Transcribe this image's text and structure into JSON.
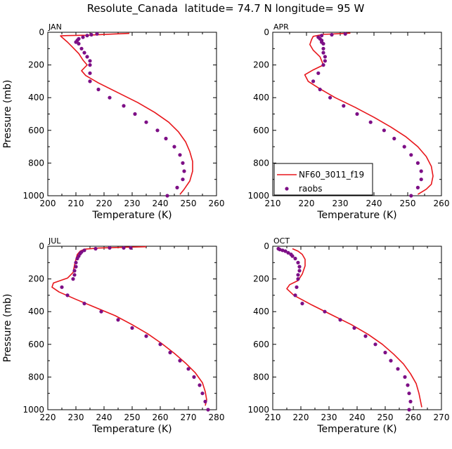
{
  "figure": {
    "title": "Resolute_Canada  latitude= 74.7 N longitude= 95 W"
  },
  "legend": {
    "model_label": "NF60_3011_f19",
    "obs_label": "raobs",
    "placement": "inside APR panel, lower-left"
  },
  "colors": {
    "model": "#e8161b",
    "obs": "#7d0f86",
    "axes": "#000000"
  },
  "chart_data": [
    {
      "type": "line",
      "panel": "JAN",
      "xlabel": "Temperature (K)",
      "ylabel": "Pressure (mb)",
      "xlim": [
        200,
        260
      ],
      "xticks": [
        "200",
        "210",
        "220",
        "230",
        "240",
        "250",
        "260"
      ],
      "ylim": [
        1000,
        0
      ],
      "yticks": [
        "0",
        "200",
        "400",
        "600",
        "800",
        "1000"
      ],
      "series": [
        {
          "name": "NF60_3011_f19",
          "kind": "line",
          "points": [
            [
              229,
              7
            ],
            [
              223,
              11
            ],
            [
              214,
              18
            ],
            [
              207,
              20
            ],
            [
              204.5,
              22
            ],
            [
              205,
              30
            ],
            [
              207,
              60
            ],
            [
              209,
              95
            ],
            [
              211,
              130
            ],
            [
              212.5,
              170
            ],
            [
              214,
              200
            ],
            [
              212,
              235
            ],
            [
              213.5,
              265
            ],
            [
              218,
              310
            ],
            [
              225,
              370
            ],
            [
              232,
              430
            ],
            [
              238,
              490
            ],
            [
              243,
              550
            ],
            [
              246.5,
              610
            ],
            [
              249,
              670
            ],
            [
              250.5,
              730
            ],
            [
              251.5,
              790
            ],
            [
              251.5,
              850
            ],
            [
              250.5,
              910
            ],
            [
              248.5,
              960
            ],
            [
              247,
              992
            ]
          ]
        },
        {
          "name": "raobs",
          "kind": "scatter",
          "points": [
            [
              217.5,
              10
            ],
            [
              215.5,
              15
            ],
            [
              214,
              20
            ],
            [
              212.5,
              30
            ],
            [
              211,
              40
            ],
            [
              210.5,
              50
            ],
            [
              210,
              60
            ],
            [
              211,
              70
            ],
            [
              212,
              100
            ],
            [
              213,
              125
            ],
            [
              214,
              150
            ],
            [
              215,
              175
            ],
            [
              215,
              200
            ],
            [
              215,
              250
            ],
            [
              215,
              300
            ],
            [
              218,
              350
            ],
            [
              222,
              400
            ],
            [
              227,
              450
            ],
            [
              231,
              500
            ],
            [
              235,
              550
            ],
            [
              239,
              600
            ],
            [
              242,
              650
            ],
            [
              245,
              700
            ],
            [
              247,
              750
            ],
            [
              248,
              800
            ],
            [
              248.5,
              850
            ],
            [
              248,
              900
            ],
            [
              246,
              950
            ],
            [
              242.5,
              1000
            ]
          ]
        }
      ]
    },
    {
      "type": "line",
      "panel": "APR",
      "xlabel": "Temperature (K)",
      "ylabel": "",
      "xlim": [
        210,
        260
      ],
      "xticks": [
        "210",
        "220",
        "230",
        "240",
        "250",
        "260"
      ],
      "ylim": [
        1000,
        0
      ],
      "yticks": [
        "0",
        "200",
        "400",
        "600",
        "800",
        "1000"
      ],
      "series": [
        {
          "name": "NF60_3011_f19",
          "kind": "line",
          "points": [
            [
              233,
              5
            ],
            [
              230,
              8
            ],
            [
              225,
              13
            ],
            [
              222,
              25
            ],
            [
              221.5,
              45
            ],
            [
              221,
              75
            ],
            [
              222,
              110
            ],
            [
              224,
              150
            ],
            [
              225,
              200
            ],
            [
              222,
              230
            ],
            [
              219.5,
              260
            ],
            [
              220.5,
              300
            ],
            [
              223.5,
              340
            ],
            [
              228.5,
              400
            ],
            [
              234.5,
              460
            ],
            [
              240,
              520
            ],
            [
              245,
              580
            ],
            [
              249.5,
              640
            ],
            [
              253,
              700
            ],
            [
              255.5,
              760
            ],
            [
              257,
              820
            ],
            [
              257.5,
              880
            ],
            [
              257,
              930
            ],
            [
              255.5,
              960
            ],
            [
              253,
              992
            ]
          ]
        },
        {
          "name": "raobs",
          "kind": "scatter",
          "points": [
            [
              231.5,
              10
            ],
            [
              227.5,
              15
            ],
            [
              224.5,
              20
            ],
            [
              223.5,
              30
            ],
            [
              224,
              40
            ],
            [
              224.5,
              50
            ],
            [
              224.5,
              60
            ],
            [
              225,
              70
            ],
            [
              225,
              100
            ],
            [
              225,
              125
            ],
            [
              225.5,
              150
            ],
            [
              225.5,
              175
            ],
            [
              225,
              200
            ],
            [
              223.5,
              250
            ],
            [
              222,
              300
            ],
            [
              224,
              350
            ],
            [
              227,
              400
            ],
            [
              231,
              450
            ],
            [
              235,
              500
            ],
            [
              239,
              550
            ],
            [
              243,
              600
            ],
            [
              246,
              650
            ],
            [
              249,
              700
            ],
            [
              251,
              750
            ],
            [
              253,
              800
            ],
            [
              254,
              850
            ],
            [
              254,
              900
            ],
            [
              253,
              950
            ],
            [
              251,
              1000
            ]
          ]
        }
      ]
    },
    {
      "type": "line",
      "panel": "JUL",
      "xlabel": "Temperature (K)",
      "ylabel": "Pressure (mb)",
      "xlim": [
        220,
        280
      ],
      "xticks": [
        "220",
        "230",
        "240",
        "250",
        "260",
        "270",
        "280"
      ],
      "ylim": [
        1000,
        0
      ],
      "yticks": [
        "0",
        "200",
        "400",
        "600",
        "800",
        "1000"
      ],
      "series": [
        {
          "name": "NF60_3011_f19",
          "kind": "line",
          "points": [
            [
              255,
              3
            ],
            [
              247,
              6
            ],
            [
              238,
              11
            ],
            [
              233,
              18
            ],
            [
              231.5,
              30
            ],
            [
              230.5,
              50
            ],
            [
              230,
              80
            ],
            [
              229.5,
              115
            ],
            [
              229,
              160
            ],
            [
              227,
              195
            ],
            [
              222,
              225
            ],
            [
              221.5,
              250
            ],
            [
              224,
              280
            ],
            [
              230,
              325
            ],
            [
              237,
              375
            ],
            [
              244,
              425
            ],
            [
              250,
              480
            ],
            [
              255.5,
              535
            ],
            [
              260.5,
              595
            ],
            [
              265,
              655
            ],
            [
              269,
              715
            ],
            [
              272.5,
              775
            ],
            [
              275,
              835
            ],
            [
              276,
              890
            ],
            [
              276.5,
              940
            ],
            [
              276,
              975
            ]
          ]
        },
        {
          "name": "raobs",
          "kind": "scatter",
          "points": [
            [
              249.5,
              10
            ],
            [
              247,
              10
            ],
            [
              242,
              10
            ],
            [
              237,
              15
            ],
            [
              233,
              25
            ],
            [
              232,
              35
            ],
            [
              231.5,
              45
            ],
            [
              231,
              60
            ],
            [
              230.5,
              75
            ],
            [
              230,
              100
            ],
            [
              230,
              125
            ],
            [
              229.5,
              150
            ],
            [
              229.5,
              175
            ],
            [
              229,
              200
            ],
            [
              225,
              250
            ],
            [
              227,
              300
            ],
            [
              233,
              350
            ],
            [
              239,
              400
            ],
            [
              245,
              450
            ],
            [
              250,
              500
            ],
            [
              255,
              550
            ],
            [
              260,
              600
            ],
            [
              263.5,
              650
            ],
            [
              267,
              700
            ],
            [
              270,
              750
            ],
            [
              272,
              800
            ],
            [
              274,
              850
            ],
            [
              275,
              900
            ],
            [
              276,
              950
            ],
            [
              277,
              1000
            ]
          ]
        }
      ]
    },
    {
      "type": "line",
      "panel": "OCT",
      "xlabel": "Temperature (K)",
      "ylabel": "",
      "xlim": [
        210,
        270
      ],
      "xticks": [
        "210",
        "220",
        "230",
        "240",
        "250",
        "260",
        "270"
      ],
      "ylim": [
        1000,
        0
      ],
      "yticks": [
        "0",
        "200",
        "400",
        "600",
        "800",
        "1000"
      ],
      "series": [
        {
          "name": "NF60_3011_f19",
          "kind": "line",
          "points": [
            [
              217,
              15
            ],
            [
              219,
              30
            ],
            [
              220.5,
              50
            ],
            [
              221.5,
              80
            ],
            [
              221.5,
              120
            ],
            [
              220.5,
              170
            ],
            [
              219,
              210
            ],
            [
              216,
              235
            ],
            [
              215,
              260
            ],
            [
              217.5,
              300
            ],
            [
              224,
              360
            ],
            [
              231,
              420
            ],
            [
              238,
              480
            ],
            [
              244,
              540
            ],
            [
              249,
              600
            ],
            [
              253,
              660
            ],
            [
              256.5,
              720
            ],
            [
              259,
              780
            ],
            [
              261,
              840
            ],
            [
              262,
              900
            ],
            [
              263,
              985
            ]
          ]
        },
        {
          "name": "raobs",
          "kind": "scatter",
          "points": [
            [
              212,
              15
            ],
            [
              212.5,
              20
            ],
            [
              213.5,
              25
            ],
            [
              214.5,
              30
            ],
            [
              215.5,
              40
            ],
            [
              216.5,
              50
            ],
            [
              217,
              60
            ],
            [
              218,
              75
            ],
            [
              219,
              100
            ],
            [
              219.5,
              125
            ],
            [
              219.5,
              150
            ],
            [
              219,
              175
            ],
            [
              219,
              200
            ],
            [
              218.5,
              250
            ],
            [
              218,
              300
            ],
            [
              220.5,
              350
            ],
            [
              228.5,
              400
            ],
            [
              234,
              450
            ],
            [
              239,
              500
            ],
            [
              243,
              550
            ],
            [
              246.5,
              600
            ],
            [
              250,
              650
            ],
            [
              252,
              700
            ],
            [
              254.5,
              750
            ],
            [
              257,
              800
            ],
            [
              258,
              850
            ],
            [
              258.5,
              900
            ],
            [
              259,
              950
            ],
            [
              258.5,
              1000
            ]
          ]
        }
      ]
    }
  ]
}
